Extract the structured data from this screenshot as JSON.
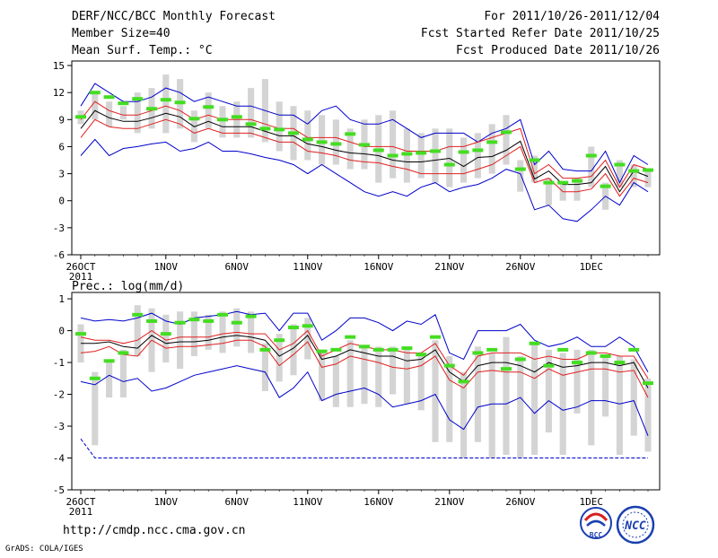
{
  "header": {
    "title": "DERF/NCC/BCC Monthly Forecast",
    "member_size": "Member Size=40",
    "variable1": "Mean Surf. Temp.: °C",
    "period": "For 2011/10/26-2011/12/04",
    "start_date": "Fcst Started Refer Date 2011/10/25",
    "produced_date": "Fcst Produced Date 2011/10/26"
  },
  "footer": {
    "url": "http://cmdp.ncc.cma.gov.cn",
    "credit": "GrADS: COLA/IGES",
    "logo1_text": "BCC",
    "logo2_text": "NCC"
  },
  "colors": {
    "mean": "#000000",
    "spread_inner": "#e02020",
    "spread_outer": "#0000cc",
    "box": "#d4d4d4",
    "climate": "#44dd22"
  },
  "chart_data": [
    {
      "type": "line",
      "title": "Mean Surf. Temp.: °C",
      "days": 40,
      "x_ticks": [
        {
          "day": 0,
          "label": "26OCT",
          "label2": "2011"
        },
        {
          "day": 6,
          "label": "1NOV"
        },
        {
          "day": 11,
          "label": "6NOV"
        },
        {
          "day": 16,
          "label": "11NOV"
        },
        {
          "day": 21,
          "label": "16NOV"
        },
        {
          "day": 26,
          "label": "21NOV"
        },
        {
          "day": 31,
          "label": "26NOV"
        },
        {
          "day": 36,
          "label": "1DEC"
        }
      ],
      "ylim": [
        -6,
        15.5
      ],
      "yticks": [
        -6,
        -3,
        0,
        3,
        6,
        9,
        12,
        15
      ],
      "series": [
        {
          "name": "max",
          "role": "outer",
          "values": [
            10.5,
            13,
            12,
            11,
            11,
            11.5,
            12.5,
            12,
            11,
            11.5,
            11,
            10.5,
            10.5,
            10,
            9.5,
            9.5,
            8.5,
            10,
            10.5,
            9,
            8.5,
            8.5,
            9,
            8,
            7,
            7.5,
            7.5,
            7.5,
            6.5,
            7.5,
            8,
            9,
            4,
            5.5,
            3.5,
            3.3,
            3.3,
            5.5,
            2,
            5,
            4
          ]
        },
        {
          "name": "upper",
          "role": "inner",
          "values": [
            9,
            11,
            10,
            9.5,
            9.5,
            10,
            10.5,
            10,
            9,
            9.5,
            9,
            9,
            9,
            8.5,
            8,
            8,
            7,
            7,
            7,
            6.5,
            6,
            6,
            6,
            5.5,
            5.5,
            5.5,
            6,
            6,
            6.5,
            7,
            7.5,
            8,
            3,
            4,
            2.5,
            2.5,
            2.7,
            4.5,
            1.5,
            4,
            3.5
          ]
        },
        {
          "name": "mean",
          "role": "mean",
          "values": [
            8,
            10,
            9.2,
            8.8,
            8.8,
            9.2,
            9.7,
            9.3,
            8.2,
            8.8,
            8.2,
            8.2,
            8.2,
            7.7,
            7.2,
            7.2,
            6.3,
            6,
            5.6,
            5.3,
            5.2,
            5,
            4.5,
            4.3,
            4.3,
            4.5,
            4.7,
            3.8,
            4.8,
            4.9,
            5.6,
            6.6,
            2.4,
            3.3,
            1.8,
            1.8,
            2,
            3.8,
            1,
            3.3,
            2.7
          ]
        },
        {
          "name": "lower",
          "role": "inner",
          "values": [
            7,
            9,
            8.2,
            8,
            8,
            8.5,
            9,
            8.5,
            7.5,
            8,
            7.5,
            7.5,
            7.5,
            7,
            6.5,
            6.5,
            5.5,
            5.3,
            5,
            4.5,
            4.3,
            4.2,
            3.8,
            3.5,
            3,
            3,
            3,
            3,
            3.5,
            4,
            5,
            6,
            2,
            2.5,
            1,
            1,
            1.3,
            3,
            0.5,
            2.5,
            2
          ]
        },
        {
          "name": "min",
          "role": "outer",
          "values": [
            5,
            6.8,
            5,
            5.8,
            6,
            6.3,
            6.5,
            5.5,
            5.8,
            6.5,
            5.5,
            5.5,
            5.2,
            4.8,
            4.5,
            4,
            3,
            4,
            3,
            2,
            1,
            0.5,
            1,
            0.5,
            1.5,
            2,
            1,
            1.5,
            1.8,
            2.5,
            3.5,
            3,
            -1,
            -0.5,
            -2,
            -2.3,
            -1,
            0.5,
            -0.5,
            2,
            1
          ]
        },
        {
          "name": "climatology",
          "role": "climate",
          "values": [
            9.3,
            12,
            11.5,
            10.8,
            11.3,
            10.2,
            11.2,
            10.9,
            9.1,
            10.4,
            9,
            9.3,
            8.5,
            8,
            7.9,
            7.5,
            6.8,
            6.5,
            6.3,
            7.4,
            6.2,
            5.6,
            5,
            5.2,
            5.3,
            5.5,
            4,
            5.4,
            5.6,
            6.5,
            7.6,
            3.5,
            4.5,
            2,
            2,
            2.2,
            5,
            1.6,
            4,
            3.3,
            3.4
          ]
        }
      ],
      "boxes": [
        [
          8.5,
          10
        ],
        [
          9,
          12
        ],
        [
          8.2,
          11
        ],
        [
          9,
          10.5
        ],
        [
          7.5,
          12
        ],
        [
          8,
          12.5
        ],
        [
          7.5,
          14
        ],
        [
          8,
          13.5
        ],
        [
          6.5,
          10
        ],
        [
          8,
          12
        ],
        [
          7,
          10.5
        ],
        [
          7,
          11
        ],
        [
          7,
          12.5
        ],
        [
          6.5,
          13.5
        ],
        [
          5.5,
          11
        ],
        [
          4.5,
          10.5
        ],
        [
          4.5,
          10
        ],
        [
          4,
          9.5
        ],
        [
          4,
          9
        ],
        [
          3.5,
          8
        ],
        [
          3.5,
          9
        ],
        [
          2,
          9.5
        ],
        [
          2.5,
          10
        ],
        [
          2,
          8
        ],
        [
          2.5,
          7.5
        ],
        [
          2,
          8
        ],
        [
          1.5,
          8
        ],
        [
          2,
          7
        ],
        [
          2.5,
          7.5
        ],
        [
          3,
          8.5
        ],
        [
          4,
          9.5
        ],
        [
          1,
          4.5
        ],
        [
          2,
          5
        ],
        [
          -0.5,
          2.5
        ],
        [
          0,
          2
        ],
        [
          0,
          2.5
        ],
        [
          1.5,
          6
        ],
        [
          -1,
          2
        ],
        [
          1.5,
          4.5
        ],
        [
          1.5,
          4
        ],
        [
          1.5,
          3.5
        ]
      ]
    },
    {
      "type": "line",
      "title": "Prec.: log(mm/d)",
      "days": 40,
      "x_ticks": [
        {
          "day": 0,
          "label": "26OCT",
          "label2": "2011"
        },
        {
          "day": 6,
          "label": "1NOV"
        },
        {
          "day": 11,
          "label": "6NOV"
        },
        {
          "day": 16,
          "label": "11NOV"
        },
        {
          "day": 21,
          "label": "16NOV"
        },
        {
          "day": 26,
          "label": "21NOV"
        },
        {
          "day": 31,
          "label": "26NOV"
        },
        {
          "day": 36,
          "label": "1DEC"
        }
      ],
      "ylim": [
        -5,
        1.2
      ],
      "yticks": [
        -5,
        -4,
        -3,
        -2,
        -1,
        0,
        1
      ],
      "series": [
        {
          "name": "max",
          "role": "outer",
          "values": [
            0.4,
            0.3,
            0.35,
            0.3,
            0.4,
            0.55,
            0.3,
            0.2,
            0.4,
            0.45,
            0.5,
            0.6,
            0.5,
            0.55,
            0,
            0.55,
            0.55,
            -0.3,
            0,
            0.4,
            0.4,
            0.25,
            0,
            0.3,
            0.2,
            0.5,
            -0.7,
            -0.9,
            0,
            0,
            0,
            0.2,
            -0.3,
            -0.5,
            -0.4,
            -0.2,
            -0.5,
            -0.5,
            -0.2,
            -0.5,
            -1.3
          ]
        },
        {
          "name": "upper",
          "role": "inner",
          "values": [
            -0.2,
            -0.3,
            -0.3,
            -0.4,
            -0.3,
            0,
            -0.3,
            -0.2,
            -0.2,
            -0.2,
            -0.1,
            -0.05,
            -0.1,
            -0.1,
            -0.6,
            -0.4,
            0,
            -0.8,
            -0.6,
            -0.4,
            -0.5,
            -0.6,
            -0.6,
            -0.7,
            -0.7,
            -0.4,
            -1.1,
            -1.4,
            -0.8,
            -0.7,
            -0.7,
            -0.7,
            -0.9,
            -0.8,
            -0.9,
            -0.9,
            -0.7,
            -0.7,
            -0.8,
            -0.8,
            -1.5
          ]
        },
        {
          "name": "mean",
          "role": "mean",
          "values": [
            -0.4,
            -0.4,
            -0.35,
            -0.5,
            -0.55,
            -0.15,
            -0.4,
            -0.35,
            -0.35,
            -0.3,
            -0.2,
            -0.15,
            -0.2,
            -0.3,
            -0.8,
            -0.55,
            -0.15,
            -0.9,
            -0.8,
            -0.6,
            -0.7,
            -0.8,
            -0.8,
            -0.95,
            -0.9,
            -0.6,
            -1.3,
            -1.6,
            -1.1,
            -1,
            -1,
            -1.1,
            -1.3,
            -1,
            -1.15,
            -1.1,
            -1,
            -1,
            -1.1,
            -1,
            -1.8
          ]
        },
        {
          "name": "lower",
          "role": "inner",
          "values": [
            -0.7,
            -0.65,
            -0.5,
            -0.75,
            -0.8,
            -0.3,
            -0.55,
            -0.5,
            -0.5,
            -0.45,
            -0.4,
            -0.3,
            -0.3,
            -0.5,
            -1.1,
            -0.75,
            -0.35,
            -1.15,
            -1.05,
            -0.8,
            -0.9,
            -1,
            -1.15,
            -1.2,
            -1.1,
            -0.8,
            -1.55,
            -1.8,
            -1.3,
            -1.25,
            -1.3,
            -1.3,
            -1.5,
            -1.2,
            -1.4,
            -1.3,
            -1.2,
            -1.2,
            -1.3,
            -1.25,
            -2.1
          ]
        },
        {
          "name": "min",
          "role": "outer",
          "values": [
            -1.6,
            -1.7,
            -1.4,
            -1.6,
            -1.5,
            -1.9,
            -1.8,
            -1.6,
            -1.4,
            -1.3,
            -1.2,
            -1.1,
            -1.2,
            -1.3,
            -2.1,
            -1.8,
            -1.3,
            -2.2,
            -2,
            -1.9,
            -1.8,
            -2,
            -2.4,
            -2.3,
            -2.2,
            -2,
            -2.8,
            -3.1,
            -2.4,
            -2.3,
            -2.3,
            -2.1,
            -2.6,
            -2.2,
            -2.5,
            -2.4,
            -2.2,
            -2.2,
            -2.3,
            -2.2,
            -3.3
          ]
        },
        {
          "name": "lowest",
          "role": "outer",
          "values": [
            -3.4,
            -4,
            -4,
            -4,
            -4,
            -4,
            -4,
            -4,
            -4,
            -4,
            -4,
            -4,
            -4,
            -4,
            -4,
            -4,
            -4,
            -4,
            -4,
            -4,
            -4,
            -4,
            -4,
            -4,
            -4,
            -4,
            -4,
            -4,
            -4,
            -4,
            -4,
            -4,
            -4,
            -4,
            -4,
            -4,
            -4,
            -4,
            -4,
            -4,
            -4
          ]
        },
        {
          "name": "climatology",
          "role": "climate",
          "values": [
            -0.1,
            -1.5,
            -0.95,
            -0.7,
            0.5,
            0.3,
            -0.1,
            0.25,
            0.35,
            0.3,
            0.5,
            0.25,
            0.45,
            -0.6,
            -0.3,
            0.1,
            0.15,
            -0.65,
            -0.6,
            -0.2,
            -0.5,
            -0.6,
            -0.6,
            -0.55,
            -0.75,
            -0.2,
            -1.1,
            -1.6,
            -0.7,
            -0.6,
            -1.2,
            -0.9,
            -0.4,
            -1.1,
            -0.6,
            -1,
            -0.7,
            -0.8,
            -1,
            -0.6,
            -1.65
          ]
        }
      ],
      "boxes": [
        [
          -1,
          0.2
        ],
        [
          -3.6,
          -1.3
        ],
        [
          -2.1,
          -0.9
        ],
        [
          -2.1,
          -0.6
        ],
        [
          -0.8,
          0.8
        ],
        [
          -1.3,
          0.7
        ],
        [
          -1,
          0.5
        ],
        [
          -1.2,
          0.6
        ],
        [
          -0.8,
          0.6
        ],
        [
          -0.6,
          0.5
        ],
        [
          -0.7,
          0.6
        ],
        [
          -0.5,
          0.7
        ],
        [
          -0.7,
          0.6
        ],
        [
          -1.9,
          -0.4
        ],
        [
          -1.6,
          -0.1
        ],
        [
          -1.4,
          0.2
        ],
        [
          -0.9,
          0.4
        ],
        [
          -2.2,
          -0.6
        ],
        [
          -2.4,
          -0.8
        ],
        [
          -2.4,
          -0.3
        ],
        [
          -2.3,
          -0.5
        ],
        [
          -2.4,
          -0.5
        ],
        [
          -2,
          -0.5
        ],
        [
          -2.3,
          -0.6
        ],
        [
          -2.5,
          -0.8
        ],
        [
          -3.5,
          -0.3
        ],
        [
          -3.5,
          -0.8
        ],
        [
          -4,
          -1.3
        ],
        [
          -3.5,
          -0.5
        ],
        [
          -4,
          -0.7
        ],
        [
          -3.9,
          -0.2
        ],
        [
          -4,
          -0.8
        ],
        [
          -3.9,
          -0.4
        ],
        [
          -3.2,
          -0.6
        ],
        [
          -3.9,
          -0.7
        ],
        [
          -2.6,
          -0.6
        ],
        [
          -3.6,
          -0.6
        ],
        [
          -2.7,
          -0.8
        ],
        [
          -3.9,
          -0.8
        ],
        [
          -3.3,
          -0.9
        ],
        [
          -3.8,
          -1.5
        ]
      ]
    }
  ]
}
